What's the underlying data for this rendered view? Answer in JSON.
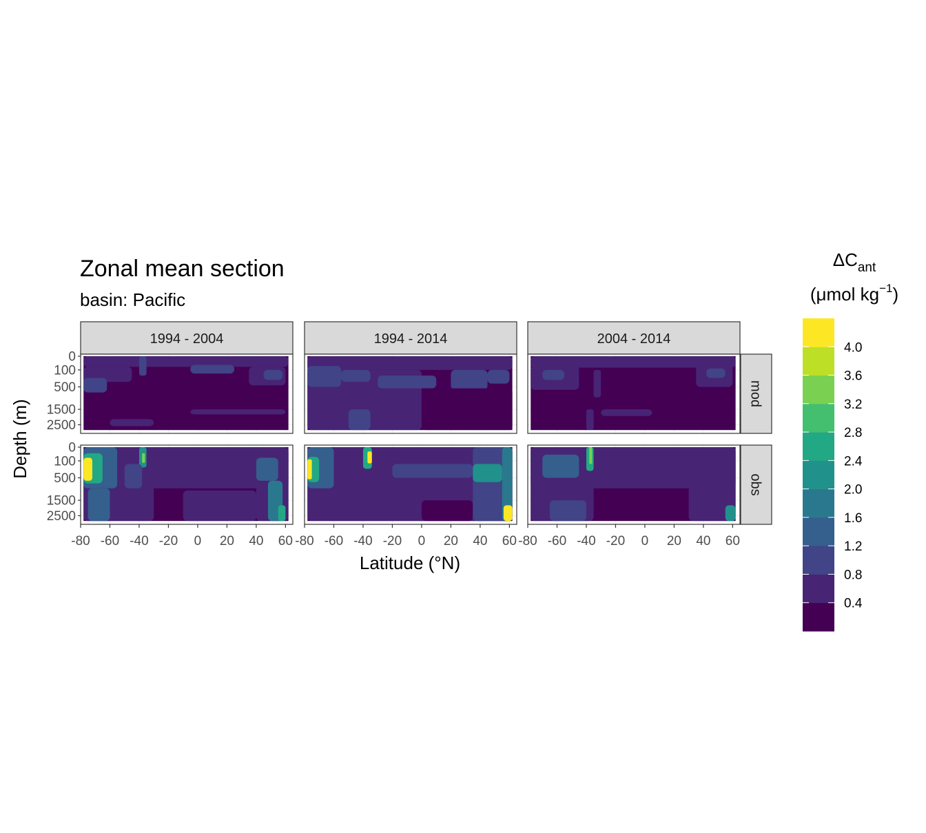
{
  "chart_data": {
    "type": "heatmap",
    "title": "Zonal mean section",
    "subtitle": "basin: Pacific",
    "xlabel": "Latitude (°N)",
    "ylabel": "Depth (m)",
    "x_ticks": [
      -80,
      -60,
      -40,
      -20,
      0,
      20,
      40,
      60
    ],
    "x_tick_labels": [
      "-80",
      "-60",
      "-40",
      "-20",
      "0",
      "20",
      "40",
      "60"
    ],
    "xlim": [
      -80,
      65
    ],
    "y_ticks": [
      0,
      100,
      500,
      1500,
      2500
    ],
    "y_tick_labels": [
      "0",
      "100",
      "500",
      "1500",
      "2500"
    ],
    "ylim": [
      0,
      3000
    ],
    "y_scale": "sqrt, reversed",
    "column_facets": [
      "1994 - 2004",
      "1994 - 2014",
      "2004 - 2014"
    ],
    "row_facets": [
      "mod",
      "obs"
    ],
    "legend": {
      "title_main": "ΔC",
      "title_sub": "ant",
      "title_units_pre": "(μmol kg",
      "title_units_sup": "−1",
      "title_units_post": ")",
      "position": "right",
      "breaks": [
        0.4,
        0.8,
        1.2,
        1.6,
        2.0,
        2.4,
        2.8,
        3.2,
        3.6,
        4.0
      ],
      "labels": [
        "0.4",
        "0.8",
        "1.2",
        "1.6",
        "2.0",
        "2.4",
        "2.8",
        "3.2",
        "3.6",
        "4.0"
      ],
      "colors": [
        "#440154",
        "#482475",
        "#414487",
        "#355f8d",
        "#2a788e",
        "#21918c",
        "#22a884",
        "#44bf70",
        "#7ad151",
        "#bddf26",
        "#fde725"
      ]
    },
    "panels": [
      {
        "column": "1994 - 2004",
        "row": "mod",
        "data_lat_range": [
          -78,
          62
        ],
        "data_depth_max": 2900,
        "background_level": 0,
        "patches": [
          {
            "lat": [
              -78,
              62
            ],
            "depth": [
              0,
              60
            ],
            "level": 1
          },
          {
            "lat": [
              -78,
              -45
            ],
            "depth": [
              60,
              350
            ],
            "level": 1
          },
          {
            "lat": [
              -78,
              -62
            ],
            "depth": [
              250,
              700
            ],
            "level": 2
          },
          {
            "lat": [
              -40,
              -35
            ],
            "depth": [
              0,
              200
            ],
            "level": 2
          },
          {
            "lat": [
              -5,
              25
            ],
            "depth": [
              40,
              160
            ],
            "level": 2
          },
          {
            "lat": [
              35,
              60
            ],
            "depth": [
              60,
              450
            ],
            "level": 1
          },
          {
            "lat": [
              45,
              58
            ],
            "depth": [
              100,
              300
            ],
            "level": 2
          },
          {
            "lat": [
              -60,
              -30
            ],
            "depth": [
              2100,
              2600
            ],
            "level": 1
          },
          {
            "lat": [
              -5,
              60
            ],
            "depth": [
              1500,
              1800
            ],
            "level": 1
          }
        ]
      },
      {
        "column": "1994 - 2014",
        "row": "mod",
        "data_lat_range": [
          -78,
          62
        ],
        "data_depth_max": 2900,
        "background_level": 0,
        "patches": [
          {
            "lat": [
              -78,
              62
            ],
            "depth": [
              0,
              100
            ],
            "level": 1
          },
          {
            "lat": [
              -78,
              0
            ],
            "depth": [
              100,
              2900
            ],
            "level": 1
          },
          {
            "lat": [
              -78,
              -55
            ],
            "depth": [
              50,
              500
            ],
            "level": 2
          },
          {
            "lat": [
              -55,
              -35
            ],
            "depth": [
              100,
              350
            ],
            "level": 2
          },
          {
            "lat": [
              -30,
              10
            ],
            "depth": [
              200,
              550
            ],
            "level": 2
          },
          {
            "lat": [
              20,
              45
            ],
            "depth": [
              100,
              600
            ],
            "level": 2
          },
          {
            "lat": [
              45,
              60
            ],
            "depth": [
              100,
              400
            ],
            "level": 2
          },
          {
            "lat": [
              -50,
              -35
            ],
            "depth": [
              1500,
              2900
            ],
            "level": 2
          },
          {
            "lat": [
              0,
              62
            ],
            "depth": [
              550,
              2900
            ],
            "level": 0
          }
        ]
      },
      {
        "column": "2004 - 2014",
        "row": "mod",
        "data_lat_range": [
          -78,
          62
        ],
        "data_depth_max": 2900,
        "background_level": 0,
        "patches": [
          {
            "lat": [
              -78,
              62
            ],
            "depth": [
              0,
              70
            ],
            "level": 1
          },
          {
            "lat": [
              -78,
              -45
            ],
            "depth": [
              50,
              600
            ],
            "level": 1
          },
          {
            "lat": [
              -70,
              -55
            ],
            "depth": [
              100,
              300
            ],
            "level": 2
          },
          {
            "lat": [
              -35,
              -30
            ],
            "depth": [
              100,
              900
            ],
            "level": 1
          },
          {
            "lat": [
              35,
              60
            ],
            "depth": [
              50,
              500
            ],
            "level": 1
          },
          {
            "lat": [
              42,
              55
            ],
            "depth": [
              80,
              250
            ],
            "level": 2
          },
          {
            "lat": [
              -40,
              -35
            ],
            "depth": [
              1500,
              2900
            ],
            "level": 1
          },
          {
            "lat": [
              -30,
              5
            ],
            "depth": [
              1500,
              1900
            ],
            "level": 1
          }
        ]
      },
      {
        "column": "1994 - 2004",
        "row": "obs",
        "data_lat_range": [
          -78,
          62
        ],
        "data_depth_max": 2900,
        "background_level": 0,
        "patches": [
          {
            "lat": [
              -78,
              62
            ],
            "depth": [
              0,
              900
            ],
            "level": 1
          },
          {
            "lat": [
              -78,
              -30
            ],
            "depth": [
              0,
              2900
            ],
            "level": 1
          },
          {
            "lat": [
              40,
              62
            ],
            "depth": [
              0,
              2900
            ],
            "level": 1
          },
          {
            "lat": [
              -78,
              -55
            ],
            "depth": [
              0,
              900
            ],
            "level": 3
          },
          {
            "lat": [
              -78,
              -65
            ],
            "depth": [
              20,
              700
            ],
            "level": 6
          },
          {
            "lat": [
              -78,
              -72
            ],
            "depth": [
              60,
              600
            ],
            "level": 10
          },
          {
            "lat": [
              -40,
              -35
            ],
            "depth": [
              0,
              220
            ],
            "level": 5
          },
          {
            "lat": [
              -38,
              -36
            ],
            "depth": [
              20,
              130
            ],
            "level": 8
          },
          {
            "lat": [
              -75,
              -60
            ],
            "depth": [
              900,
              2900
            ],
            "level": 3
          },
          {
            "lat": [
              -50,
              -38
            ],
            "depth": [
              150,
              900
            ],
            "level": 2
          },
          {
            "lat": [
              -10,
              40
            ],
            "depth": [
              1000,
              2900
            ],
            "level": 1
          },
          {
            "lat": [
              40,
              55
            ],
            "depth": [
              60,
              600
            ],
            "level": 3
          },
          {
            "lat": [
              48,
              58
            ],
            "depth": [
              600,
              2900
            ],
            "level": 4
          },
          {
            "lat": [
              55,
              60
            ],
            "depth": [
              1800,
              2900
            ],
            "level": 6
          }
        ]
      },
      {
        "column": "1994 - 2014",
        "row": "obs",
        "data_lat_range": [
          -78,
          62
        ],
        "data_depth_max": 2900,
        "background_level": 0,
        "patches": [
          {
            "lat": [
              -78,
              62
            ],
            "depth": [
              0,
              2900
            ],
            "level": 1
          },
          {
            "lat": [
              -78,
              -60
            ],
            "depth": [
              0,
              900
            ],
            "level": 3
          },
          {
            "lat": [
              -78,
              -70
            ],
            "depth": [
              50,
              650
            ],
            "level": 6
          },
          {
            "lat": [
              -78,
              -75
            ],
            "depth": [
              80,
              550
            ],
            "level": 10
          },
          {
            "lat": [
              -40,
              -34
            ],
            "depth": [
              0,
              250
            ],
            "level": 6
          },
          {
            "lat": [
              -37,
              -34
            ],
            "depth": [
              10,
              140
            ],
            "level": 10
          },
          {
            "lat": [
              -20,
              35
            ],
            "depth": [
              150,
              500
            ],
            "level": 2
          },
          {
            "lat": [
              0,
              35
            ],
            "depth": [
              1500,
              2900
            ],
            "level": 0
          },
          {
            "lat": [
              35,
              62
            ],
            "depth": [
              0,
              2900
            ],
            "level": 2
          },
          {
            "lat": [
              35,
              55
            ],
            "depth": [
              150,
              650
            ],
            "level": 5
          },
          {
            "lat": [
              55,
              62
            ],
            "depth": [
              0,
              2900
            ],
            "level": 4
          },
          {
            "lat": [
              56,
              62
            ],
            "depth": [
              1800,
              2900
            ],
            "level": 10
          }
        ]
      },
      {
        "column": "2004 - 2014",
        "row": "obs",
        "data_lat_range": [
          -78,
          62
        ],
        "data_depth_max": 2900,
        "background_level": 0,
        "patches": [
          {
            "lat": [
              -78,
              62
            ],
            "depth": [
              0,
              900
            ],
            "level": 1
          },
          {
            "lat": [
              -78,
              -35
            ],
            "depth": [
              0,
              2900
            ],
            "level": 1
          },
          {
            "lat": [
              -70,
              -45
            ],
            "depth": [
              30,
              500
            ],
            "level": 3
          },
          {
            "lat": [
              -40,
              -35
            ],
            "depth": [
              0,
              300
            ],
            "level": 6
          },
          {
            "lat": [
              -38,
              -36
            ],
            "depth": [
              0,
              150
            ],
            "level": 8
          },
          {
            "lat": [
              -65,
              -40
            ],
            "depth": [
              1500,
              2900
            ],
            "level": 2
          },
          {
            "lat": [
              30,
              62
            ],
            "depth": [
              0,
              2900
            ],
            "level": 1
          },
          {
            "lat": [
              55,
              62
            ],
            "depth": [
              1800,
              2900
            ],
            "level": 5
          }
        ]
      }
    ]
  }
}
